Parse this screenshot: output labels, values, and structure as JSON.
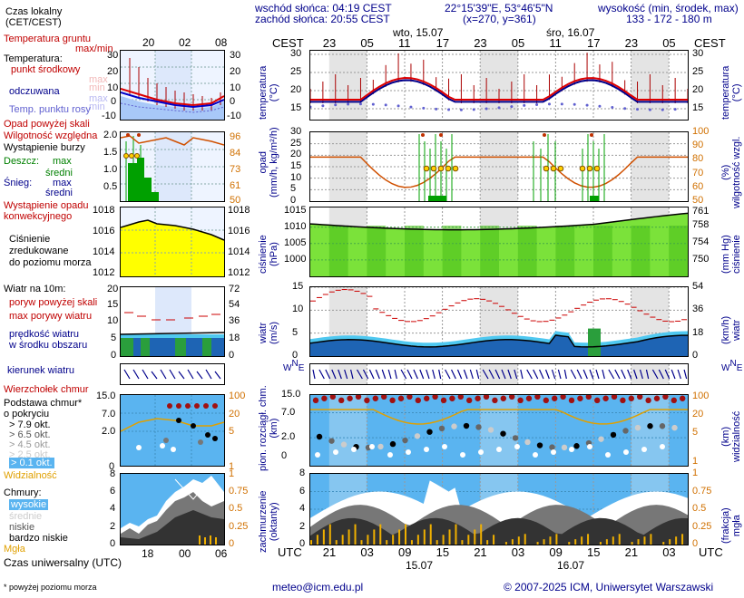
{
  "header": {
    "sunrise": "wschód słońca: 04:19 CEST",
    "sunset": "zachód słońca: 20:55 CEST",
    "coords": "22°15'39\"E, 53°46'5\"N",
    "grid": "(x=270, y=361)",
    "elev_title": "wysokość (min, środek, max)",
    "elev_vals": "133 - 172 - 180 m"
  },
  "left": {
    "time_label": "Czas lokalny\n(CET/CEST)",
    "time_ticks_top": [
      "20",
      "02",
      "08"
    ],
    "time_ticks_bottom": [
      "18",
      "00",
      "06"
    ],
    "utc_label": "Czas uniwersalny (UTC)",
    "temp_labels": {
      "ground": "Temperatura gruntu",
      "maxmin": "max/min",
      "title": "Temperatura:",
      "middle": "punkt środkowy",
      "max": "max",
      "min": "min",
      "felt": "odczuwana",
      "felt_max": "max",
      "felt_min": "min",
      "dew": "Temp. punktu rosy"
    },
    "temp_axis": [
      "30",
      "20",
      "10",
      "0",
      "-10"
    ],
    "precip_labels": {
      "above": "Opad powyżej skali",
      "humidity": "Wilgotność względna",
      "storm": "Wystąpienie burzy",
      "rain": "Deszcz:",
      "rain_max": "max",
      "rain_mid": "średni",
      "snow": "Śnieg:",
      "snow_max": "max",
      "snow_mid": "średni",
      "conv": "Wystąpienie opadu\nkonwekcyjnego"
    },
    "precip_axis": [
      "2.0",
      "1.5",
      "1.0",
      "0.5"
    ],
    "hum_axis": [
      "96",
      "84",
      "73",
      "61",
      "50"
    ],
    "pressure_labels": "Ciśnienie\nzredukowane\ndo poziomu morza",
    "pressure_axis": [
      "1018",
      "1016",
      "1014",
      "1012"
    ],
    "wind_labels": {
      "title": "Wiatr na 10m:",
      "gust_above": "poryw powyżej skali",
      "gust_max": "max porywy wiatru",
      "speed": "prędkość wiatru\nw środku obszaru"
    },
    "wind_axis": [
      "20",
      "15",
      "10",
      "5",
      "0"
    ],
    "wind_kmh": [
      "72",
      "54",
      "36",
      "18",
      "0"
    ],
    "direction": "kierunek wiatru",
    "cloud_labels": {
      "cb": "Wierzchołek chmur",
      "base": "Podstawa chmur*\no pokryciu",
      "o79": "> 7.9 okt.",
      "o65": "> 6.5 okt.",
      "o45": "> 4.5 okt.",
      "o25": "> 2.5 okt.",
      "o01": "> 0.1 okt.",
      "vis": "Widzialność"
    },
    "cloud_axis": [
      "15.0",
      "7.0",
      "2.0",
      "0"
    ],
    "vis_axis": [
      "100",
      "20",
      "5",
      "1"
    ],
    "clouds_labels": {
      "title": "Chmury:",
      "high": "wysokie",
      "mid": "średnie",
      "low": "niskie",
      "vlow": "bardzo niskie",
      "fog": "Mgła"
    },
    "clouds_axis": [
      "8",
      "6",
      "4",
      "2",
      "0"
    ],
    "fog_axis": [
      "1",
      "0.75",
      "0.5",
      "0.25",
      "0"
    ],
    "footnote": "* powyżej poziomu morza"
  },
  "main": {
    "cest": "CEST",
    "utc": "UTC",
    "top_ticks": [
      "23",
      "05",
      "11",
      "17",
      "23",
      "05",
      "11",
      "17",
      "23",
      "05"
    ],
    "bottom_ticks": [
      "21",
      "03",
      "09",
      "15",
      "21",
      "03",
      "09",
      "15",
      "21",
      "03"
    ],
    "day1_top": "wto, 15.07",
    "day2_top": "śro, 16.07",
    "day1_bottom": "15.07",
    "day2_bottom": "16.07",
    "temp_label": "temperatura\n(°C)",
    "temp_axis": [
      "30",
      "25",
      "20",
      "15"
    ],
    "precip_label": "opad\n(mm/h, kg/m²/h)",
    "precip_axis": [
      "30",
      "25",
      "20",
      "15",
      "10",
      "5",
      "0"
    ],
    "hum_label": "(%)\nwilgotność wzgl.",
    "hum_axis": [
      "100",
      "90",
      "80",
      "70",
      "60",
      "50"
    ],
    "press_label": "ciśnienie\n(hPa)",
    "press_axis": [
      "1015",
      "1010",
      "1005",
      "1000"
    ],
    "press_mmhg_label": "(mm Hg)\nciśnienie",
    "press_mmhg_axis": [
      "761",
      "758",
      "754",
      "750"
    ],
    "wind_label": "wiatr\n(m/s)",
    "wind_axis": [
      "15",
      "10",
      "5",
      "0"
    ],
    "wind_kmh_label": "(km/h)\nwiatr",
    "wind_kmh_axis": [
      "54",
      "36",
      "18",
      "0"
    ],
    "compass": [
      "N",
      "W",
      "E",
      "S"
    ],
    "cloud_label": "pion. rozciągł. chm.\n(km)",
    "cloud_axis": [
      "15.0",
      "7.0",
      "2.0",
      "0"
    ],
    "vis_label": "(km)\nwidzialność",
    "vis_axis": [
      "100",
      "20",
      "5",
      "1"
    ],
    "clouds_label": "zachmurzenie\n(oktanty)",
    "clouds_axis": [
      "8",
      "6",
      "4",
      "2",
      "0"
    ],
    "fog_label": "(frakcja)\nmgła",
    "fog_axis": [
      "1",
      "0.75",
      "0.5",
      "0.25",
      "0"
    ]
  },
  "footer": {
    "email": "meteo@icm.edu.pl",
    "copyright": "© 2007-2025 ICM, Uniwersytet Warszawski"
  }
}
